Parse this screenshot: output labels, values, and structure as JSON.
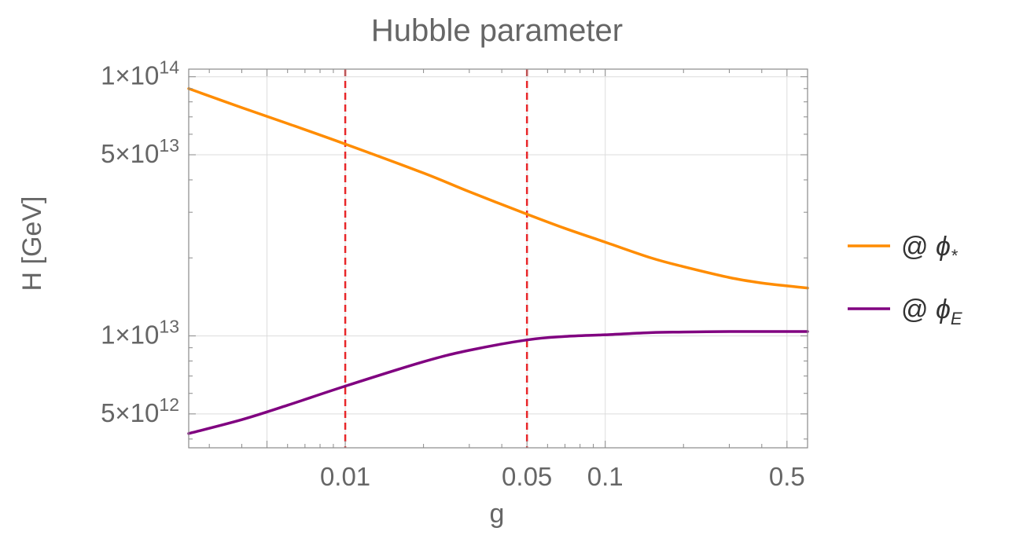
{
  "chart_data": {
    "type": "line",
    "title": "Hubble parameter",
    "xlabel": "g",
    "ylabel": "H [GeV]",
    "x_scale": "log",
    "y_scale": "log",
    "xlim": [
      0.0025,
      0.6
    ],
    "ylim": [
      3700000000000.0,
      107000000000000.0
    ],
    "grid": true,
    "legend_position": "right",
    "x_ticks": [
      {
        "value": 0.01,
        "label": "0.01"
      },
      {
        "value": 0.05,
        "label": "0.05"
      },
      {
        "value": 0.1,
        "label": "0.1"
      },
      {
        "value": 0.5,
        "label": "0.5"
      }
    ],
    "y_ticks": [
      {
        "value": 100000000000000.0,
        "mantissa": "1",
        "exponent": "14"
      },
      {
        "value": 50000000000000.0,
        "mantissa": "5",
        "exponent": "13"
      },
      {
        "value": 10000000000000.0,
        "mantissa": "1",
        "exponent": "13"
      },
      {
        "value": 5000000000000.0,
        "mantissa": "5",
        "exponent": "12"
      }
    ],
    "reference_lines": [
      {
        "axis": "x",
        "value": 0.01,
        "color": "#e8272a",
        "style": "dashed"
      },
      {
        "axis": "x",
        "value": 0.05,
        "color": "#e8272a",
        "style": "dashed"
      }
    ],
    "series": [
      {
        "name_prefix": "@ ",
        "name_symbol": "ϕ",
        "name_subscript": "*",
        "color": "#ff8c00",
        "x": [
          0.0025,
          0.004,
          0.006,
          0.01,
          0.02,
          0.03,
          0.05,
          0.07,
          0.1,
          0.15,
          0.2,
          0.3,
          0.4,
          0.5,
          0.6
        ],
        "y": [
          90000000000000.0,
          76000000000000.0,
          66000000000000.0,
          55000000000000.0,
          42500000000000.0,
          36000000000000.0,
          29500000000000.0,
          26000000000000.0,
          23000000000000.0,
          20000000000000.0,
          18500000000000.0,
          16800000000000.0,
          16000000000000.0,
          15600000000000.0,
          15300000000000.0
        ]
      },
      {
        "name_prefix": "@ ",
        "name_symbol": "ϕ",
        "name_subscript": "E",
        "color": "#800080",
        "x": [
          0.0025,
          0.004,
          0.006,
          0.01,
          0.02,
          0.03,
          0.05,
          0.07,
          0.1,
          0.15,
          0.2,
          0.3,
          0.4,
          0.5,
          0.6
        ],
        "y": [
          4200000000000.0,
          4750000000000.0,
          5400000000000.0,
          6400000000000.0,
          7950000000000.0,
          8800000000000.0,
          9650000000000.0,
          9950000000000.0,
          10100000000000.0,
          10300000000000.0,
          10350000000000.0,
          10400000000000.0,
          10400000000000.0,
          10400000000000.0,
          10400000000000.0
        ]
      }
    ]
  }
}
